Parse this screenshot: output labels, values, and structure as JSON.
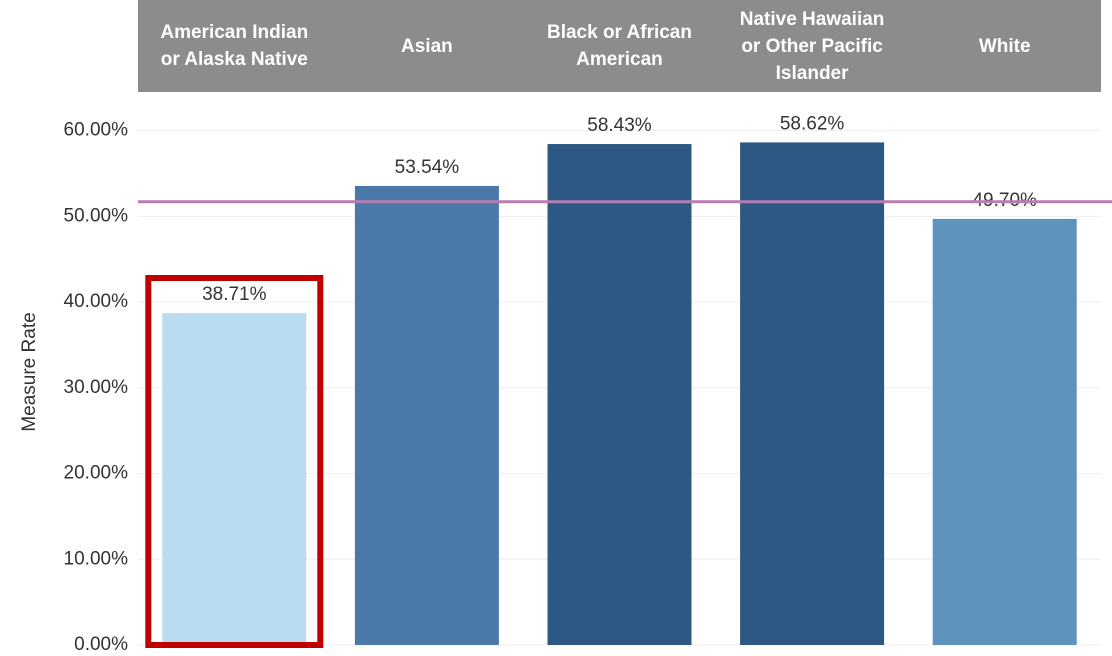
{
  "chart_data": {
    "type": "bar",
    "y_label": "Measure Rate",
    "categories": [
      "American Indian or Alaska Native",
      "Asian",
      "Black or African American",
      "Native Hawaiian or Other Pacific Islander",
      "White"
    ],
    "values": [
      38.71,
      53.54,
      58.43,
      58.62,
      49.7
    ],
    "value_labels": [
      "38.71%",
      "53.54%",
      "58.43%",
      "58.62%",
      "49.70%"
    ],
    "colors": [
      "#b9dcf0",
      "#4a78a8",
      "#2d5883",
      "#2d5883",
      "#6092be"
    ],
    "ylim": [
      0,
      64.5
    ],
    "yticks": [
      {
        "value": 0,
        "label": "0.00%"
      },
      {
        "value": 10,
        "label": "10.00%"
      },
      {
        "value": 20,
        "label": "20.00%"
      },
      {
        "value": 30,
        "label": "30.00%"
      },
      {
        "value": 40,
        "label": "40.00%"
      },
      {
        "value": 50,
        "label": "50.00%"
      },
      {
        "value": 60,
        "label": "60.00%"
      }
    ],
    "reference_line": 51.7,
    "reference_color": "#b57fb5",
    "grid": true
  }
}
